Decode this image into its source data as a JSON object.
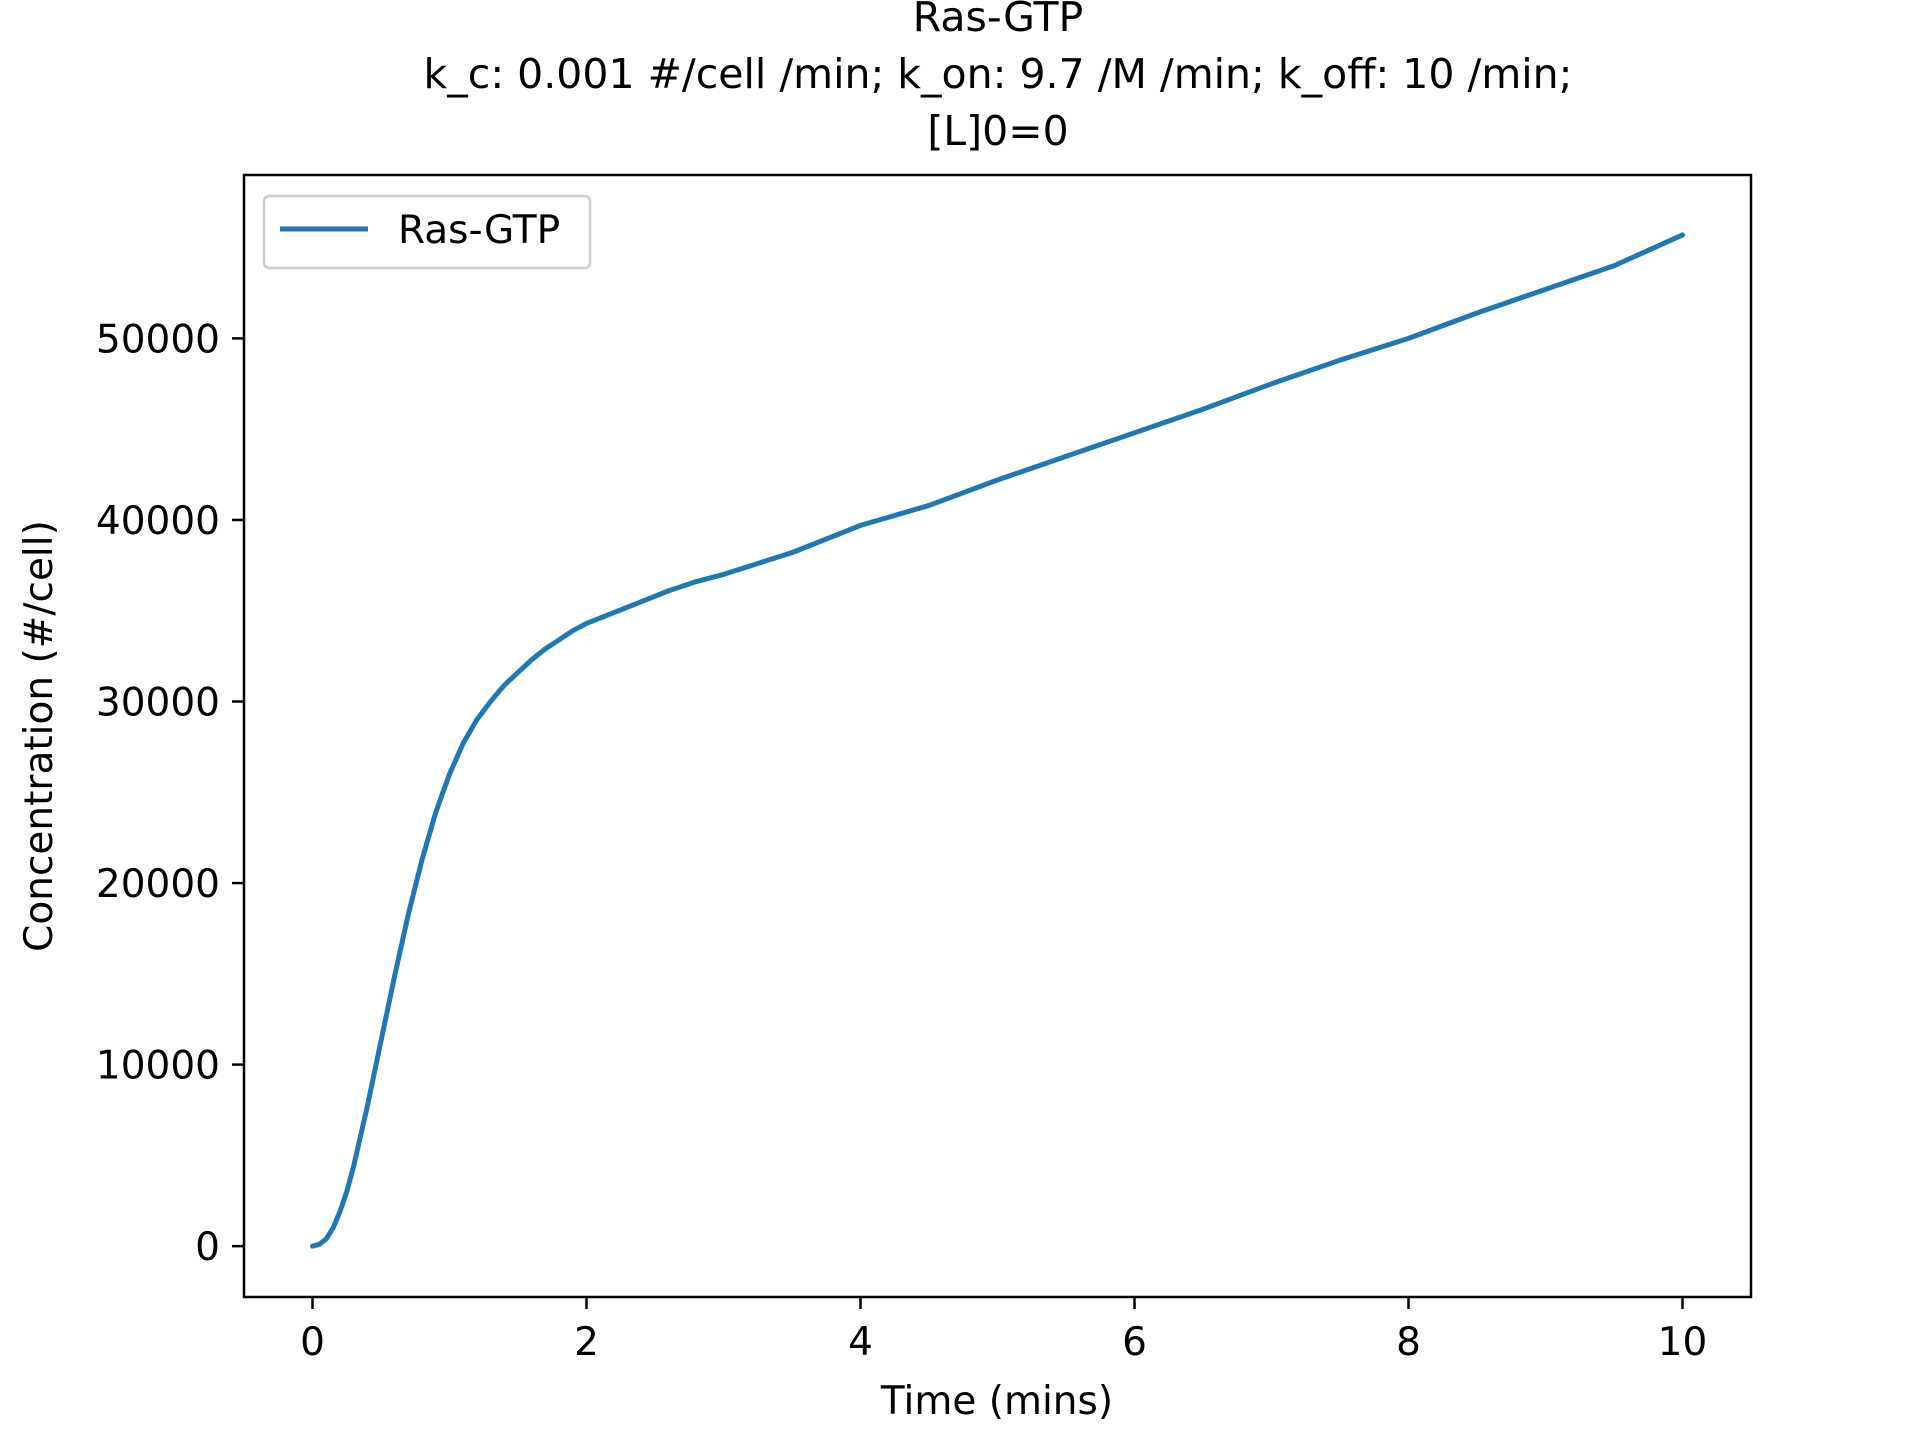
{
  "chart_data": {
    "type": "line",
    "title": "Ras-GTP\nk_c: 0.001 #/cell /min; k_on: 9.7 /M /min; k_off: 10 /min;\n[L]0=0",
    "title_lines": [
      "Ras-GTP",
      "k_c: 0.001 #/cell /min; k_on: 9.7 /M /min; k_off: 10 /min;",
      "[L]0=0"
    ],
    "xlabel": "Time (mins)",
    "ylabel": "Concentration (#/cell)",
    "xlim": [
      -0.5,
      10.5
    ],
    "ylim": [
      -2800,
      59000
    ],
    "xticks": [
      0,
      2,
      4,
      6,
      8,
      10
    ],
    "xtick_labels": [
      "0",
      "2",
      "4",
      "6",
      "8",
      "10"
    ],
    "yticks": [
      0,
      10000,
      20000,
      30000,
      40000,
      50000
    ],
    "ytick_labels": [
      "0",
      "10000",
      "20000",
      "30000",
      "40000",
      "50000"
    ],
    "grid": false,
    "legend_position": "upper-left",
    "series": [
      {
        "name": "Ras-GTP",
        "color": "#1f77b4",
        "x": [
          0,
          0.05,
          0.1,
          0.15,
          0.2,
          0.25,
          0.3,
          0.4,
          0.5,
          0.6,
          0.7,
          0.8,
          0.9,
          1.0,
          1.1,
          1.2,
          1.3,
          1.4,
          1.5,
          1.6,
          1.7,
          1.8,
          1.9,
          2.0,
          2.2,
          2.4,
          2.6,
          2.8,
          3.0,
          3.5,
          4.0,
          4.5,
          5.0,
          5.5,
          6.0,
          6.5,
          7.0,
          7.5,
          8.0,
          8.5,
          9.0,
          9.5,
          10.0
        ],
        "y": [
          0,
          100,
          400,
          1000,
          1900,
          3000,
          4400,
          7700,
          11300,
          14900,
          18300,
          21300,
          23900,
          26000,
          27700,
          29000,
          30000,
          30900,
          31600,
          32300,
          32900,
          33400,
          33900,
          34300,
          34900,
          35500,
          36100,
          36600,
          37000,
          38200,
          39700,
          40800,
          42200,
          43500,
          44800,
          46100,
          47500,
          48800,
          50000,
          51400,
          52700,
          54000,
          55700
        ]
      }
    ]
  }
}
